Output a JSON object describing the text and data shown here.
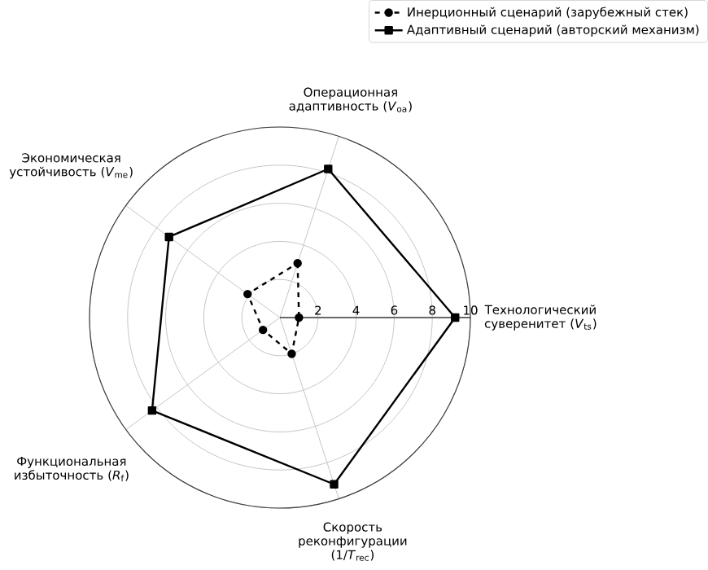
{
  "chart_data": {
    "type": "radar",
    "categories": [
      "Операционная адаптивность (*V*$_{oa}$)",
      "Технологический суверенитет (*V*$_{ts}$)",
      "Скорость реконфигурации (1/*T*$_{rec}$)",
      "Функциональная избыточность (*R*$_{f}$)",
      "Экономическая устойчивость (*V*$_{me}$)"
    ],
    "series": [
      {
        "name": "Инерционный сценарий (зарубежный стек)",
        "color": "#000000",
        "marker": "circle",
        "line_style": "dashed",
        "values": [
          3.0,
          1.0,
          2.0,
          1.1,
          2.1
        ]
      },
      {
        "name": "Адаптивный сценарий (авторский механизм)",
        "color": "#000000",
        "marker": "square",
        "line_style": "solid",
        "values": [
          8.2,
          9.2,
          9.2,
          8.3,
          7.2
        ]
      }
    ],
    "ylim": [
      0,
      10
    ],
    "yticks": [
      2,
      4,
      6,
      8,
      10
    ],
    "grid": true,
    "legend": "top right"
  }
}
